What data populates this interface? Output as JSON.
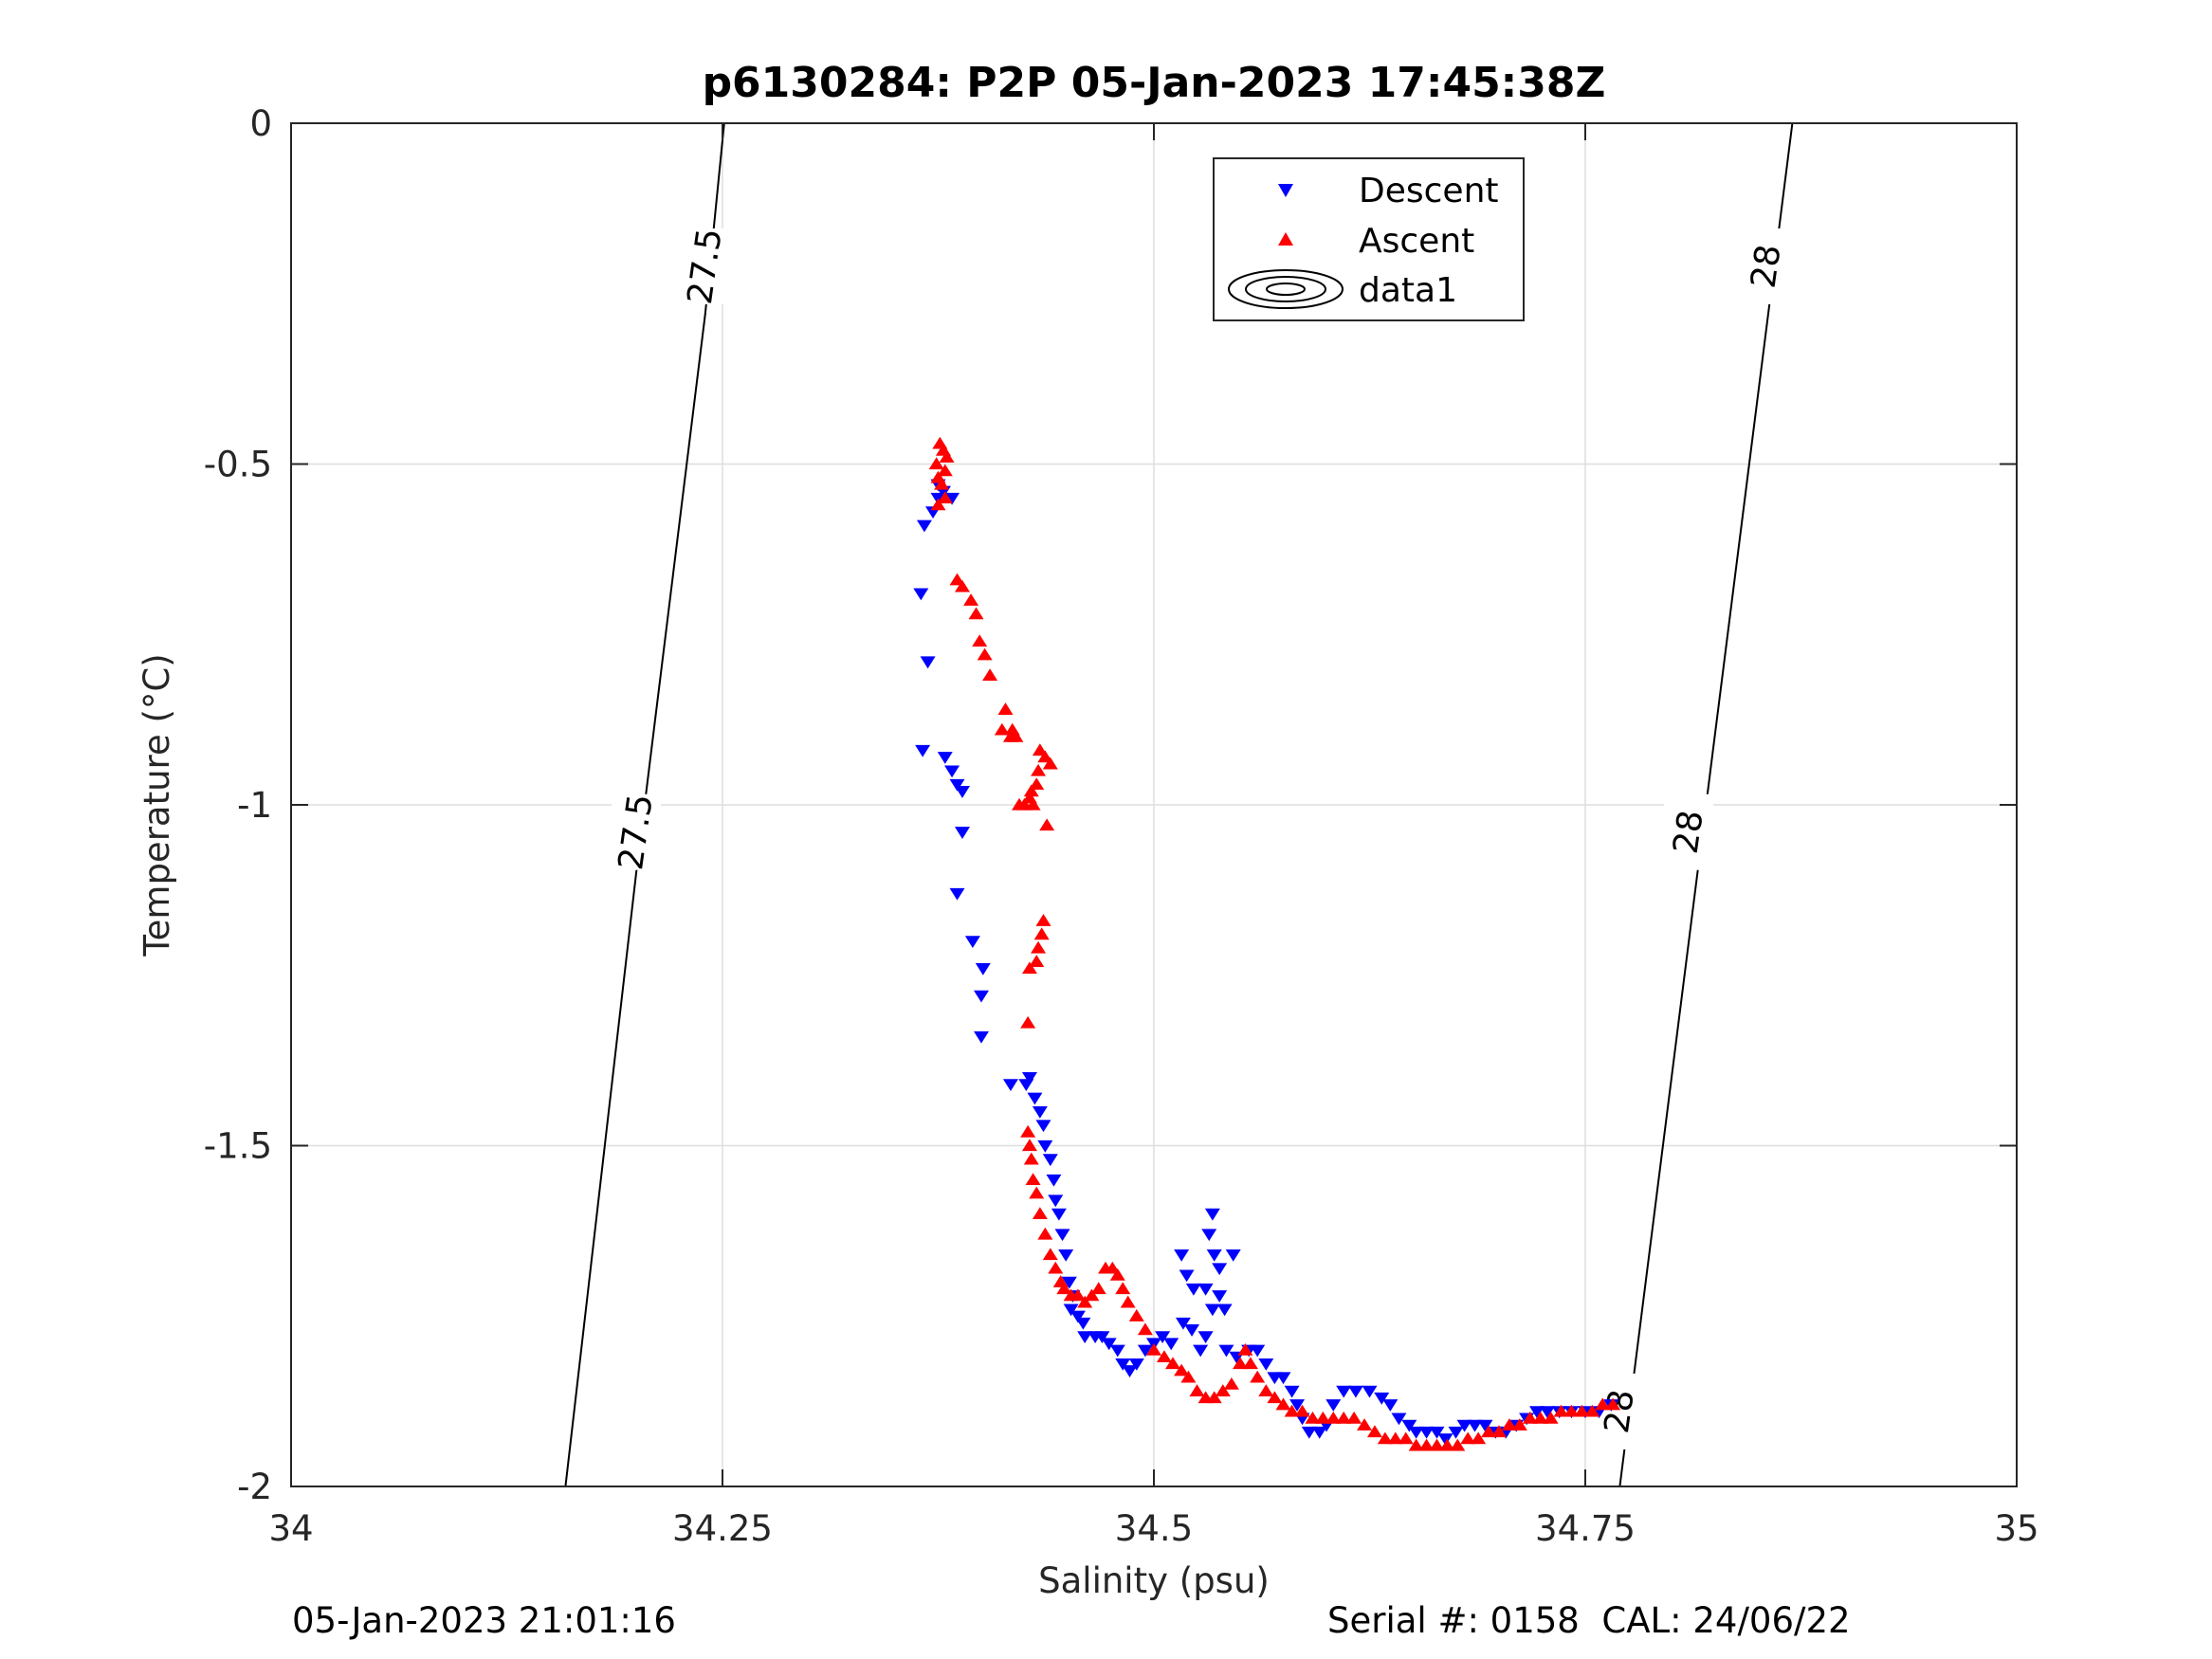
{
  "chart_data": {
    "type": "scatter",
    "title": "p6130284: P2P 05-Jan-2023 17:45:38Z",
    "xlabel": "Salinity (psu)",
    "ylabel": "Temperature (°C)",
    "xlim": [
      34,
      35
    ],
    "ylim": [
      -2,
      0
    ],
    "xticks": [
      34,
      34.25,
      34.5,
      34.75,
      35
    ],
    "xtick_labels": [
      "34",
      "34.25",
      "34.5",
      "34.75",
      "35"
    ],
    "yticks": [
      0,
      -0.5,
      -1,
      -1.5,
      -2
    ],
    "ytick_labels": [
      "0",
      "-0.5",
      "-1",
      "-1.5",
      "-2"
    ],
    "grid": true,
    "legend_position": "top",
    "legend": [
      {
        "label": "Descent",
        "marker": "triangle-down",
        "color": "#0000ff"
      },
      {
        "label": "Ascent",
        "marker": "triangle-up",
        "color": "#ff0000"
      },
      {
        "label": "data1",
        "marker": "contour",
        "color": "#000000"
      }
    ],
    "contours": [
      {
        "level_label": "27.5",
        "points": [
          [
            34.159,
            -2.0
          ],
          [
            34.2,
            -1.1
          ],
          [
            34.24,
            -0.28
          ],
          [
            34.251,
            0.0
          ]
        ],
        "label_at": [
          [
            34.2,
            -1.04
          ],
          [
            34.24,
            -0.21
          ]
        ]
      },
      {
        "level_label": "28",
        "points": [
          [
            34.77,
            -2.0
          ],
          [
            34.8,
            -1.4
          ],
          [
            34.845,
            -0.5
          ],
          [
            34.87,
            0.0
          ]
        ],
        "label_at": [
          [
            34.77,
            -1.89
          ],
          [
            34.81,
            -1.04
          ],
          [
            34.855,
            -0.21
          ]
        ]
      }
    ],
    "series": [
      {
        "name": "Descent",
        "color": "#0000ff",
        "marker": "triangle-down",
        "points": [
          [
            34.367,
            -0.59
          ],
          [
            34.372,
            -0.57
          ],
          [
            34.375,
            -0.55
          ],
          [
            34.378,
            -0.54
          ],
          [
            34.383,
            -0.55
          ],
          [
            34.375,
            -0.53
          ],
          [
            34.365,
            -0.69
          ],
          [
            34.369,
            -0.79
          ],
          [
            34.366,
            -0.92
          ],
          [
            34.379,
            -0.93
          ],
          [
            34.383,
            -0.95
          ],
          [
            34.386,
            -0.97
          ],
          [
            34.389,
            -0.98
          ],
          [
            34.389,
            -1.04
          ],
          [
            34.386,
            -1.13
          ],
          [
            34.395,
            -1.2
          ],
          [
            34.401,
            -1.24
          ],
          [
            34.4,
            -1.28
          ],
          [
            34.4,
            -1.34
          ],
          [
            34.417,
            -1.41
          ],
          [
            34.426,
            -1.41
          ],
          [
            34.428,
            -1.4
          ],
          [
            34.431,
            -1.43
          ],
          [
            34.434,
            -1.45
          ],
          [
            34.436,
            -1.47
          ],
          [
            34.437,
            -1.5
          ],
          [
            34.44,
            -1.52
          ],
          [
            34.442,
            -1.55
          ],
          [
            34.443,
            -1.58
          ],
          [
            34.445,
            -1.6
          ],
          [
            34.447,
            -1.63
          ],
          [
            34.449,
            -1.66
          ],
          [
            34.451,
            -1.7
          ],
          [
            34.453,
            -1.72
          ],
          [
            34.452,
            -1.74
          ],
          [
            34.456,
            -1.75
          ],
          [
            34.459,
            -1.76
          ],
          [
            34.46,
            -1.78
          ],
          [
            34.466,
            -1.78
          ],
          [
            34.47,
            -1.78
          ],
          [
            34.474,
            -1.79
          ],
          [
            34.479,
            -1.8
          ],
          [
            34.482,
            -1.82
          ],
          [
            34.486,
            -1.83
          ],
          [
            34.49,
            -1.82
          ],
          [
            34.495,
            -1.8
          ],
          [
            34.5,
            -1.79
          ],
          [
            34.505,
            -1.78
          ],
          [
            34.51,
            -1.79
          ],
          [
            34.517,
            -1.76
          ],
          [
            34.522,
            -1.77
          ],
          [
            34.527,
            -1.8
          ],
          [
            34.53,
            -1.78
          ],
          [
            34.534,
            -1.74
          ],
          [
            34.538,
            -1.72
          ],
          [
            34.541,
            -1.74
          ],
          [
            34.534,
            -1.6
          ],
          [
            34.532,
            -1.63
          ],
          [
            34.535,
            -1.66
          ],
          [
            34.538,
            -1.68
          ],
          [
            34.546,
            -1.66
          ],
          [
            34.516,
            -1.66
          ],
          [
            34.519,
            -1.69
          ],
          [
            34.523,
            -1.71
          ],
          [
            34.53,
            -1.71
          ],
          [
            34.542,
            -1.8
          ],
          [
            34.548,
            -1.81
          ],
          [
            34.555,
            -1.8
          ],
          [
            34.56,
            -1.8
          ],
          [
            34.565,
            -1.82
          ],
          [
            34.57,
            -1.84
          ],
          [
            34.575,
            -1.84
          ],
          [
            34.58,
            -1.86
          ],
          [
            34.583,
            -1.88
          ],
          [
            34.586,
            -1.9
          ],
          [
            34.59,
            -1.92
          ],
          [
            34.596,
            -1.92
          ],
          [
            34.6,
            -1.91
          ],
          [
            34.604,
            -1.88
          ],
          [
            34.61,
            -1.86
          ],
          [
            34.617,
            -1.86
          ],
          [
            34.625,
            -1.86
          ],
          [
            34.632,
            -1.87
          ],
          [
            34.637,
            -1.88
          ],
          [
            34.642,
            -1.9
          ],
          [
            34.648,
            -1.91
          ],
          [
            34.652,
            -1.92
          ],
          [
            34.658,
            -1.92
          ],
          [
            34.664,
            -1.92
          ],
          [
            34.669,
            -1.93
          ],
          [
            34.675,
            -1.92
          ],
          [
            34.68,
            -1.91
          ],
          [
            34.686,
            -1.91
          ],
          [
            34.692,
            -1.91
          ],
          [
            34.698,
            -1.92
          ],
          [
            34.704,
            -1.92
          ],
          [
            34.71,
            -1.91
          ],
          [
            34.716,
            -1.9
          ],
          [
            34.722,
            -1.89
          ],
          [
            34.728,
            -1.89
          ],
          [
            34.735,
            -1.89
          ],
          [
            34.742,
            -1.89
          ],
          [
            34.75,
            -1.89
          ],
          [
            34.758,
            -1.89
          ],
          [
            34.765,
            -1.88
          ]
        ]
      },
      {
        "name": "Ascent",
        "color": "#ff0000",
        "marker": "triangle-up",
        "points": [
          [
            34.376,
            -0.47
          ],
          [
            34.378,
            -0.48
          ],
          [
            34.38,
            -0.49
          ],
          [
            34.374,
            -0.5
          ],
          [
            34.379,
            -0.51
          ],
          [
            34.375,
            -0.52
          ],
          [
            34.377,
            -0.53
          ],
          [
            34.379,
            -0.55
          ],
          [
            34.375,
            -0.56
          ],
          [
            34.386,
            -0.67
          ],
          [
            34.389,
            -0.68
          ],
          [
            34.394,
            -0.7
          ],
          [
            34.397,
            -0.72
          ],
          [
            34.399,
            -0.76
          ],
          [
            34.402,
            -0.78
          ],
          [
            34.405,
            -0.81
          ],
          [
            34.414,
            -0.86
          ],
          [
            34.412,
            -0.89
          ],
          [
            34.418,
            -0.89
          ],
          [
            34.42,
            -0.9
          ],
          [
            34.417,
            -0.9
          ],
          [
            34.434,
            -0.92
          ],
          [
            34.437,
            -0.93
          ],
          [
            34.433,
            -0.95
          ],
          [
            34.44,
            -0.94
          ],
          [
            34.432,
            -0.97
          ],
          [
            34.429,
            -0.98
          ],
          [
            34.428,
            -0.99
          ],
          [
            34.425,
            -1.0
          ],
          [
            34.422,
            -1.0
          ],
          [
            34.43,
            -1.0
          ],
          [
            34.438,
            -1.03
          ],
          [
            34.436,
            -1.17
          ],
          [
            34.435,
            -1.19
          ],
          [
            34.433,
            -1.21
          ],
          [
            34.432,
            -1.23
          ],
          [
            34.428,
            -1.24
          ],
          [
            34.427,
            -1.32
          ],
          [
            34.427,
            -1.48
          ],
          [
            34.428,
            -1.5
          ],
          [
            34.429,
            -1.52
          ],
          [
            34.43,
            -1.55
          ],
          [
            34.432,
            -1.57
          ],
          [
            34.434,
            -1.6
          ],
          [
            34.437,
            -1.63
          ],
          [
            34.44,
            -1.66
          ],
          [
            34.443,
            -1.68
          ],
          [
            34.446,
            -1.7
          ],
          [
            34.448,
            -1.71
          ],
          [
            34.452,
            -1.72
          ],
          [
            34.456,
            -1.72
          ],
          [
            34.46,
            -1.73
          ],
          [
            34.464,
            -1.72
          ],
          [
            34.468,
            -1.71
          ],
          [
            34.472,
            -1.68
          ],
          [
            34.476,
            -1.68
          ],
          [
            34.479,
            -1.69
          ],
          [
            34.482,
            -1.71
          ],
          [
            34.485,
            -1.73
          ],
          [
            34.49,
            -1.75
          ],
          [
            34.495,
            -1.77
          ],
          [
            34.5,
            -1.8
          ],
          [
            34.506,
            -1.81
          ],
          [
            34.511,
            -1.82
          ],
          [
            34.516,
            -1.83
          ],
          [
            34.52,
            -1.84
          ],
          [
            34.525,
            -1.86
          ],
          [
            34.53,
            -1.87
          ],
          [
            34.535,
            -1.87
          ],
          [
            34.54,
            -1.86
          ],
          [
            34.545,
            -1.85
          ],
          [
            34.55,
            -1.82
          ],
          [
            34.553,
            -1.8
          ],
          [
            34.556,
            -1.82
          ],
          [
            34.56,
            -1.84
          ],
          [
            34.565,
            -1.86
          ],
          [
            34.57,
            -1.87
          ],
          [
            34.575,
            -1.88
          ],
          [
            34.58,
            -1.89
          ],
          [
            34.586,
            -1.89
          ],
          [
            34.592,
            -1.9
          ],
          [
            34.598,
            -1.9
          ],
          [
            34.604,
            -1.9
          ],
          [
            34.61,
            -1.9
          ],
          [
            34.616,
            -1.9
          ],
          [
            34.622,
            -1.91
          ],
          [
            34.628,
            -1.92
          ],
          [
            34.634,
            -1.93
          ],
          [
            34.64,
            -1.93
          ],
          [
            34.646,
            -1.93
          ],
          [
            34.652,
            -1.94
          ],
          [
            34.658,
            -1.94
          ],
          [
            34.664,
            -1.94
          ],
          [
            34.67,
            -1.94
          ],
          [
            34.676,
            -1.94
          ],
          [
            34.682,
            -1.93
          ],
          [
            34.688,
            -1.93
          ],
          [
            34.694,
            -1.92
          ],
          [
            34.7,
            -1.92
          ],
          [
            34.706,
            -1.91
          ],
          [
            34.712,
            -1.91
          ],
          [
            34.718,
            -1.9
          ],
          [
            34.724,
            -1.9
          ],
          [
            34.73,
            -1.9
          ],
          [
            34.736,
            -1.89
          ],
          [
            34.742,
            -1.89
          ],
          [
            34.748,
            -1.89
          ],
          [
            34.754,
            -1.89
          ],
          [
            34.76,
            -1.88
          ],
          [
            34.766,
            -1.88
          ]
        ]
      }
    ]
  },
  "footer": {
    "left_text": "05-Jan-2023 21:01:16",
    "right_text": "Serial #: 0158  CAL: 24/06/22"
  }
}
